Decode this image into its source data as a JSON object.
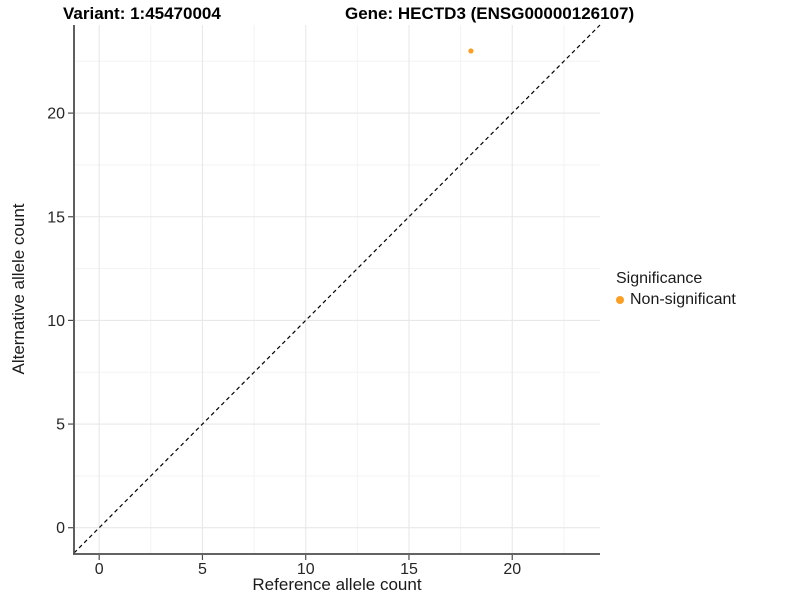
{
  "titles": {
    "variant": "Variant: 1:45470004",
    "gene": "Gene: HECTD3 (ENSG00000126107)"
  },
  "chart_data": {
    "type": "scatter",
    "title": "Variant: 1:45470004 — Gene: HECTD3 (ENSG00000126107)",
    "xlabel": "Reference allele count",
    "ylabel": "Alternative allele count",
    "xlim": [
      -1.22,
      24.25
    ],
    "ylim": [
      -1.22,
      24.25
    ],
    "x_ticks": [
      0,
      5,
      10,
      15,
      20
    ],
    "y_ticks": [
      0,
      5,
      10,
      15,
      20
    ],
    "x_minor_ticks": [
      2.5,
      7.5,
      12.5,
      17.5,
      22.5
    ],
    "y_minor_ticks": [
      2.5,
      7.5,
      12.5,
      17.5,
      22.5
    ],
    "grid": "major+minor",
    "identity_line": {
      "style": "dashed",
      "color": "#000000",
      "slope": 1,
      "intercept": 0
    },
    "series": [
      {
        "name": "Non-significant",
        "color": "#FB9E24",
        "point_radius": 2.6,
        "points": [
          {
            "x": 18,
            "y": 23
          }
        ]
      }
    ],
    "legend": {
      "title": "Significance",
      "position": "right",
      "entries": [
        {
          "label": "Non-significant",
          "color": "#FB9E24"
        }
      ]
    }
  },
  "colors": {
    "background": "#FFFFFF",
    "grid_major": "#E8E8E8",
    "grid_minor": "#F3F3F3",
    "axis_line": "#4D4D4D",
    "tick_mark": "#4D4D4D",
    "tick_label": "#262626",
    "identity_line": "#000000",
    "point_orange": "#FB9E24"
  }
}
